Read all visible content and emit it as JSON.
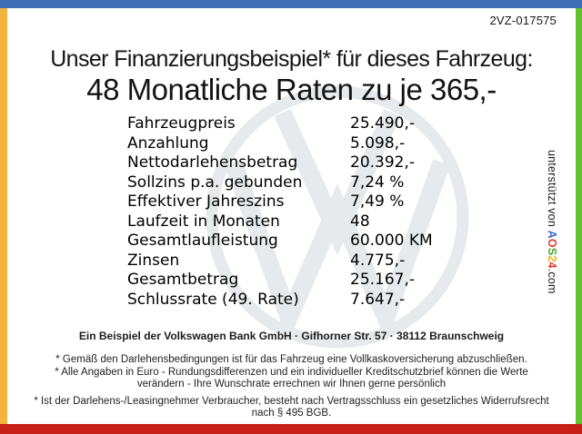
{
  "doc_id": "2VZ-017575",
  "title": {
    "line1": "Unser Finanzierungsbeispiel* für dieses Fahrzeug:",
    "line2": "48 Monatliche Raten zu je 365,-"
  },
  "finance_table": {
    "rows": [
      {
        "label": "Fahrzeugpreis",
        "value": "25.490,-"
      },
      {
        "label": "Anzahlung",
        "value": "5.098,-"
      },
      {
        "label": "Nettodarlehensbetrag",
        "value": "20.392,-"
      },
      {
        "label": "Sollzins p.a. gebunden",
        "value": "7,24 %"
      },
      {
        "label": "Effektiver Jahreszins",
        "value": "7,49 %"
      },
      {
        "label": "Laufzeit in Monaten",
        "value": "48"
      },
      {
        "label": "Gesamtlaufleistung",
        "value": "60.000 KM"
      },
      {
        "label": "Zinsen",
        "value": "4.775,-"
      },
      {
        "label": "Gesamtbetrag",
        "value": "25.167,-"
      },
      {
        "label": "Schlussrate (49. Rate)",
        "value": "7.647,-"
      }
    ]
  },
  "sidebar_note": {
    "prefix": "unterstützt von ",
    "logo_letters": [
      {
        "char": "A",
        "color": "#3a6fd4"
      },
      {
        "char": "O",
        "color": "#e23d2a"
      },
      {
        "char": "S",
        "color": "#4ba32a"
      },
      {
        "char": "2",
        "color": "#f0b31f"
      },
      {
        "char": "4",
        "color": "#e23d2a"
      }
    ],
    "logo_suffix": ".com"
  },
  "footer": {
    "bank_line": "Ein Beispiel der Volkswagen Bank GmbH · Gifhorner Str. 57 · 38112 Braunschweig",
    "footnote1": "* Gemäß den Darlehensbedingungen ist für das Fahrzeug eine Vollkaskoversicherung abzuschließen.",
    "footnote2": "* Alle Angaben in Euro - Rundungsdifferenzen und ein individueller Kreditschutzbrief können die Werte verändern - Ihre Wunschrate errechnen wir Ihnen gerne persönlich",
    "footnote3": "* Ist der Darlehens-/Leasingnehmer Verbraucher, besteht nach Vertragsschluss ein gesetzliches Widerrufsrecht nach § 495 BGB."
  },
  "frame_colors": {
    "top": "#3f6db3",
    "left": "#f2b23d",
    "right": "#64c02c",
    "bottom": "#c6201a"
  },
  "watermark_color": "#e7eaed"
}
